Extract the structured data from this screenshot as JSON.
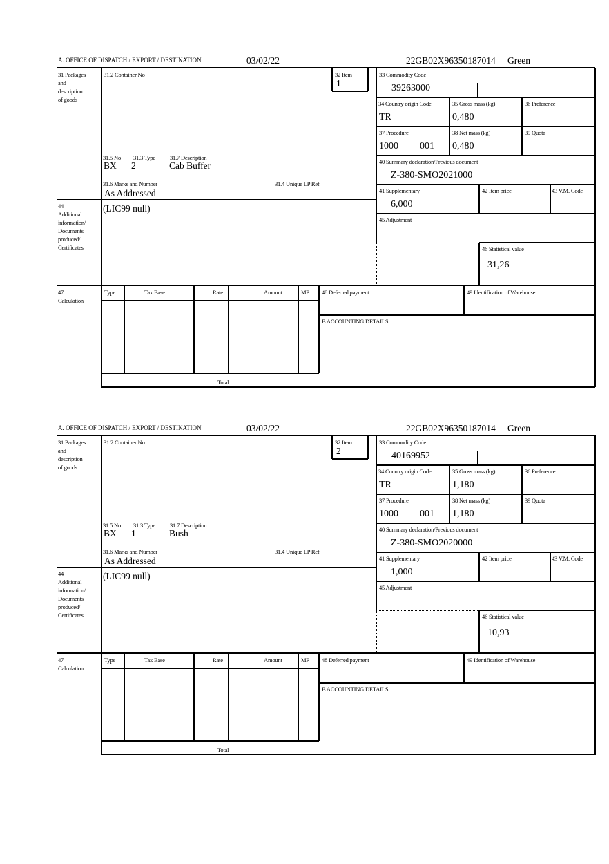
{
  "labels": {
    "office": "A. OFFICE OF DISPATCH / EXPORT / DESTINATION",
    "packages": [
      "31 Packages",
      "and",
      "description",
      "of goods"
    ],
    "container_no": "31.2 Container No",
    "item": "32 Item",
    "no": "31.5 No",
    "type": "31.3 Type",
    "description": "31.7 Description",
    "marks": "31.6 Marks and Number",
    "unique_lp": "31.4 Unique LP Ref",
    "additional": [
      "44",
      "Additional",
      "information/",
      "Documents",
      "produced/",
      "Certificates"
    ],
    "commodity": "33 Commodity Code",
    "country": "34 Country origin Code",
    "gross": "35 Gross mass (kg)",
    "preference": "36 Preference",
    "procedure": "37 Procedure",
    "net": "38 Net mass (kg)",
    "quota": "39 Quota",
    "summary": "40 Summary declaration/Previous document",
    "supplementary": "41 Supplementary",
    "item_price": "42 Item price",
    "vm_code": "43 V.M. Code",
    "adjustment": "45 Adjustment",
    "statistical": "46 Statistical value",
    "calculation": [
      "47",
      "Calculation"
    ],
    "calc_cols": [
      "Type",
      "Tax Base",
      "Rate",
      "Amount",
      "MP"
    ],
    "total": "Total",
    "deferred": "48 Deferred payment",
    "warehouse": "49 Identification of Warehouse",
    "accounting": "B ACCOUNTING DETAILS"
  },
  "items": [
    {
      "date": "03/02/22",
      "mrn": "22GB02X96350187014",
      "route": "Green",
      "item_no": "1",
      "pkg_kind": "BX",
      "pkg_count": "2",
      "description": "Cab Buffer",
      "marks": "As Addressed",
      "additional": "(LIC99 null)",
      "commodity": "39263000",
      "country": "TR",
      "gross": "0,480",
      "procedure": "1000",
      "procedure_add": "001",
      "net": "0,480",
      "summary": "Z-380-SMO2021000",
      "supplementary": "6,000",
      "statistical": "31,26"
    },
    {
      "date": "03/02/22",
      "mrn": "22GB02X96350187014",
      "route": "Green",
      "item_no": "2",
      "pkg_kind": "BX",
      "pkg_count": "1",
      "description": "Bush",
      "marks": "As Addressed",
      "additional": "(LIC99 null)",
      "commodity": "40169952",
      "country": "TR",
      "gross": "1,180",
      "procedure": "1000",
      "procedure_add": "001",
      "net": "1,180",
      "summary": "Z-380-SMO2020000",
      "supplementary": "1,000",
      "statistical": "10,93"
    }
  ]
}
